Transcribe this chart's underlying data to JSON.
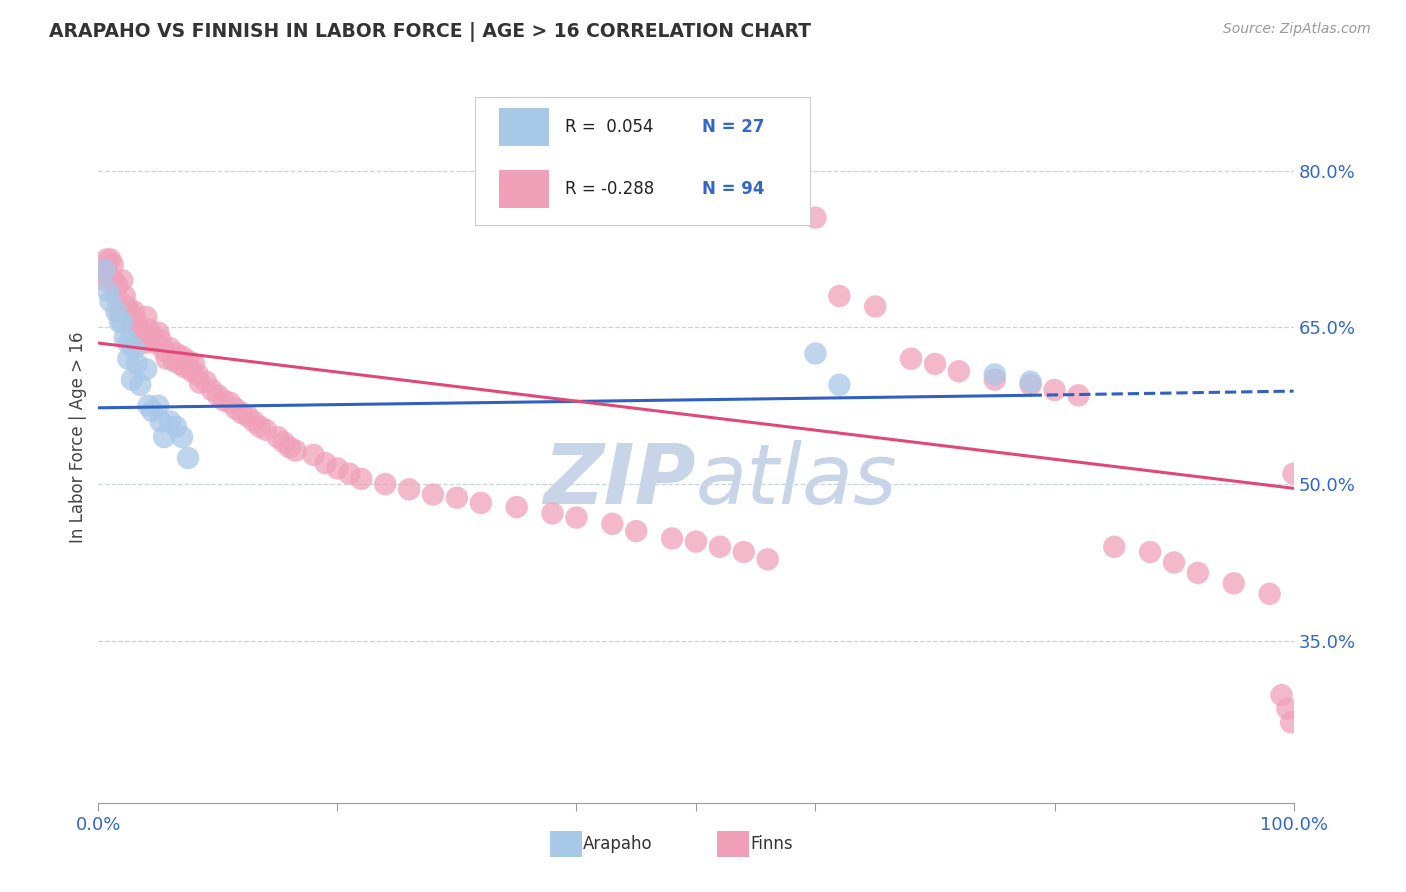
{
  "title": "ARAPAHO VS FINNISH IN LABOR FORCE | AGE > 16 CORRELATION CHART",
  "source_text": "Source: ZipAtlas.com",
  "ylabel": "In Labor Force | Age > 16",
  "xlim": [
    0.0,
    1.0
  ],
  "ylim": [
    0.195,
    0.895
  ],
  "yticks": [
    0.35,
    0.5,
    0.65,
    0.8
  ],
  "ytick_labels": [
    "35.0%",
    "50.0%",
    "65.0%",
    "80.0%"
  ],
  "xticks": [
    0.0,
    0.2,
    0.4,
    0.5,
    0.6,
    0.8,
    1.0
  ],
  "xtick_labels_show": [
    "0.0%",
    "",
    "",
    "",
    "",
    "",
    "100.0%"
  ],
  "legend_r_arapaho": "R =  0.054",
  "legend_n_arapaho": "N = 27",
  "legend_r_finns": "R = -0.288",
  "legend_n_finns": "N = 94",
  "arapaho_color": "#a8c8e8",
  "finns_color": "#f0a0b8",
  "trend_arapaho_color": "#3060c0",
  "trend_finns_color": "#e04878",
  "watermark_color": "#c8d4e8",
  "background_color": "#ffffff",
  "grid_color": "#c8d4dc",
  "arapaho_trend_x0": 0.0,
  "arapaho_trend_y0": 0.573,
  "arapaho_trend_x1": 0.78,
  "arapaho_trend_y1": 0.585,
  "arapaho_trend_dash_x0": 0.78,
  "arapaho_trend_dash_y0": 0.585,
  "arapaho_trend_dash_x1": 1.0,
  "arapaho_trend_dash_y1": 0.589,
  "finns_trend_x0": 0.0,
  "finns_trend_y0": 0.635,
  "finns_trend_x1": 1.0,
  "finns_trend_y1": 0.496,
  "arapaho_points_x": [
    0.005,
    0.008,
    0.01,
    0.015,
    0.018,
    0.02,
    0.022,
    0.025,
    0.025,
    0.028,
    0.03,
    0.032,
    0.035,
    0.04,
    0.042,
    0.045,
    0.05,
    0.052,
    0.055,
    0.06,
    0.065,
    0.07,
    0.075,
    0.6,
    0.62,
    0.75,
    0.78
  ],
  "arapaho_points_y": [
    0.705,
    0.685,
    0.675,
    0.665,
    0.655,
    0.655,
    0.64,
    0.635,
    0.62,
    0.6,
    0.63,
    0.615,
    0.595,
    0.61,
    0.575,
    0.57,
    0.575,
    0.56,
    0.545,
    0.56,
    0.555,
    0.545,
    0.525,
    0.625,
    0.595,
    0.605,
    0.598
  ],
  "finns_points_x": [
    0.005,
    0.006,
    0.007,
    0.008,
    0.01,
    0.012,
    0.013,
    0.015,
    0.016,
    0.018,
    0.02,
    0.022,
    0.024,
    0.026,
    0.028,
    0.03,
    0.032,
    0.034,
    0.036,
    0.038,
    0.04,
    0.042,
    0.045,
    0.047,
    0.05,
    0.052,
    0.055,
    0.057,
    0.06,
    0.063,
    0.065,
    0.068,
    0.07,
    0.072,
    0.075,
    0.078,
    0.08,
    0.083,
    0.085,
    0.09,
    0.095,
    0.1,
    0.105,
    0.11,
    0.115,
    0.12,
    0.125,
    0.13,
    0.135,
    0.14,
    0.15,
    0.155,
    0.16,
    0.165,
    0.18,
    0.19,
    0.2,
    0.21,
    0.22,
    0.24,
    0.26,
    0.28,
    0.3,
    0.32,
    0.35,
    0.38,
    0.4,
    0.43,
    0.45,
    0.48,
    0.5,
    0.52,
    0.54,
    0.56,
    0.6,
    0.62,
    0.65,
    0.68,
    0.7,
    0.72,
    0.75,
    0.78,
    0.8,
    0.82,
    0.85,
    0.88,
    0.9,
    0.92,
    0.95,
    0.98,
    0.99,
    0.995,
    0.998,
    1.0
  ],
  "finns_points_y": [
    0.705,
    0.695,
    0.715,
    0.7,
    0.715,
    0.71,
    0.695,
    0.68,
    0.69,
    0.665,
    0.695,
    0.68,
    0.67,
    0.665,
    0.658,
    0.665,
    0.655,
    0.648,
    0.64,
    0.635,
    0.66,
    0.648,
    0.64,
    0.635,
    0.645,
    0.638,
    0.628,
    0.62,
    0.63,
    0.618,
    0.625,
    0.615,
    0.622,
    0.612,
    0.618,
    0.608,
    0.615,
    0.605,
    0.597,
    0.598,
    0.59,
    0.585,
    0.58,
    0.578,
    0.572,
    0.568,
    0.565,
    0.56,
    0.555,
    0.552,
    0.545,
    0.54,
    0.535,
    0.532,
    0.528,
    0.52,
    0.515,
    0.51,
    0.505,
    0.5,
    0.495,
    0.49,
    0.487,
    0.482,
    0.478,
    0.472,
    0.468,
    0.462,
    0.455,
    0.448,
    0.445,
    0.44,
    0.435,
    0.428,
    0.755,
    0.68,
    0.67,
    0.62,
    0.615,
    0.608,
    0.6,
    0.595,
    0.59,
    0.585,
    0.44,
    0.435,
    0.425,
    0.415,
    0.405,
    0.395,
    0.298,
    0.285,
    0.272,
    0.51
  ]
}
